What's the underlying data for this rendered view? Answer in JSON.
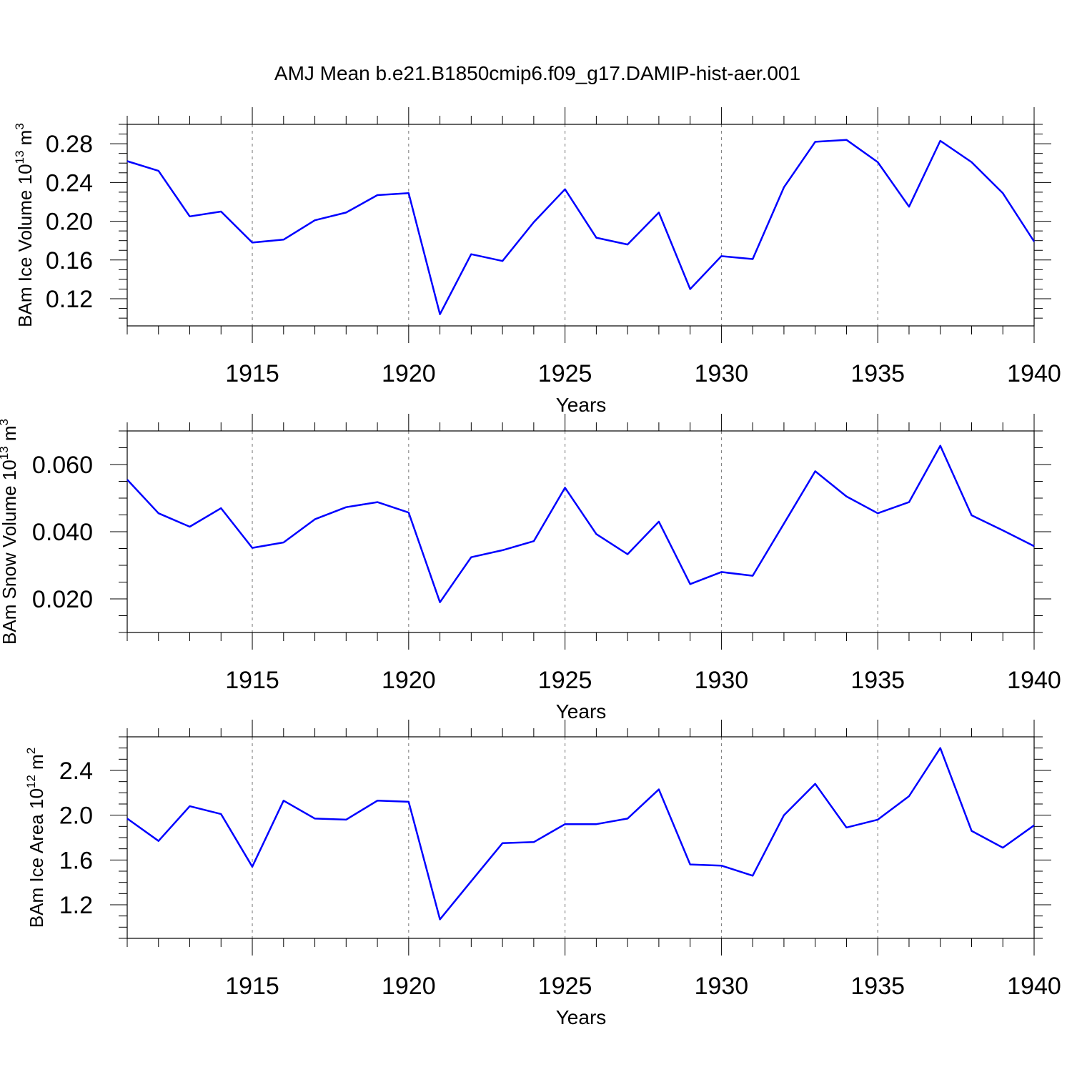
{
  "title": "AMJ Mean b.e21.B1850cmip6.f09_g17.DAMIP-hist-aer.001",
  "colors": {
    "line": "#0000ff",
    "axis": "#000000",
    "grid": "#777777"
  },
  "chart_data": [
    {
      "type": "line",
      "ylabel": {
        "base": "BAm Ice Volume 10",
        "exp": "13",
        "unit": " m",
        "unit_exp": "3"
      },
      "xlabel": "Years",
      "xlim": [
        1911,
        1940
      ],
      "ylim": [
        0.092,
        0.3
      ],
      "x_ticks": [
        1915,
        1920,
        1925,
        1930,
        1935,
        1940
      ],
      "y_ticks": [
        "0.12",
        "0.16",
        "0.20",
        "0.24",
        "0.28"
      ],
      "grid": "vertical dashed at major x ticks",
      "series": [
        {
          "x": [
            1911,
            1912,
            1913,
            1914,
            1915,
            1916,
            1917,
            1918,
            1919,
            1920,
            1921,
            1922,
            1923,
            1924,
            1925,
            1926,
            1927,
            1928,
            1929,
            1930,
            1931,
            1932,
            1933,
            1934,
            1935,
            1936,
            1937,
            1938,
            1939,
            1940
          ],
          "values": [
            0.262,
            0.252,
            0.205,
            0.21,
            0.178,
            0.181,
            0.201,
            0.209,
            0.227,
            0.229,
            0.104,
            0.166,
            0.159,
            0.199,
            0.233,
            0.183,
            0.176,
            0.209,
            0.13,
            0.164,
            0.161,
            0.235,
            0.282,
            0.284,
            0.261,
            0.215,
            0.283,
            0.261,
            0.229,
            0.179
          ]
        }
      ]
    },
    {
      "type": "line",
      "ylabel": {
        "base": "BAm Snow Volume 10",
        "exp": "13",
        "unit": " m",
        "unit_exp": "3"
      },
      "xlabel": "Years",
      "xlim": [
        1911,
        1940
      ],
      "ylim": [
        0.01,
        0.07
      ],
      "x_ticks": [
        1915,
        1920,
        1925,
        1930,
        1935,
        1940
      ],
      "y_ticks": [
        "0.020",
        "0.040",
        "0.060"
      ],
      "grid": "vertical dashed at major x ticks",
      "series": [
        {
          "x": [
            1911,
            1912,
            1913,
            1914,
            1915,
            1916,
            1917,
            1918,
            1919,
            1920,
            1921,
            1922,
            1923,
            1924,
            1925,
            1926,
            1927,
            1928,
            1929,
            1930,
            1931,
            1932,
            1933,
            1934,
            1935,
            1936,
            1937,
            1938,
            1939,
            1940
          ],
          "values": [
            0.0555,
            0.0455,
            0.0415,
            0.047,
            0.0352,
            0.0368,
            0.0437,
            0.0473,
            0.0488,
            0.0457,
            0.019,
            0.0324,
            0.0345,
            0.0372,
            0.0531,
            0.0393,
            0.0333,
            0.043,
            0.0244,
            0.028,
            0.0269,
            0.0424,
            0.058,
            0.0505,
            0.0455,
            0.0488,
            0.0656,
            0.0449,
            0.0404,
            0.0357
          ]
        }
      ]
    },
    {
      "type": "line",
      "ylabel": {
        "base": "BAm Ice Area 10",
        "exp": "12",
        "unit": " m",
        "unit_exp": "2"
      },
      "xlabel": "Years",
      "xlim": [
        1911,
        1940
      ],
      "ylim": [
        0.9,
        2.7
      ],
      "x_ticks": [
        1915,
        1920,
        1925,
        1930,
        1935,
        1940
      ],
      "y_ticks": [
        "1.2",
        "1.6",
        "2.0",
        "2.4"
      ],
      "grid": "vertical dashed at major x ticks",
      "series": [
        {
          "x": [
            1911,
            1912,
            1913,
            1914,
            1915,
            1916,
            1917,
            1918,
            1919,
            1920,
            1921,
            1922,
            1923,
            1924,
            1925,
            1926,
            1927,
            1928,
            1929,
            1930,
            1931,
            1932,
            1933,
            1934,
            1935,
            1936,
            1937,
            1938,
            1939,
            1940
          ],
          "values": [
            1.97,
            1.77,
            2.08,
            2.01,
            1.54,
            2.13,
            1.97,
            1.96,
            2.13,
            2.12,
            1.07,
            1.41,
            1.75,
            1.76,
            1.92,
            1.92,
            1.97,
            2.23,
            1.56,
            1.55,
            1.46,
            2.0,
            2.28,
            1.89,
            1.96,
            2.17,
            2.6,
            1.86,
            1.71,
            1.91
          ]
        }
      ]
    }
  ]
}
